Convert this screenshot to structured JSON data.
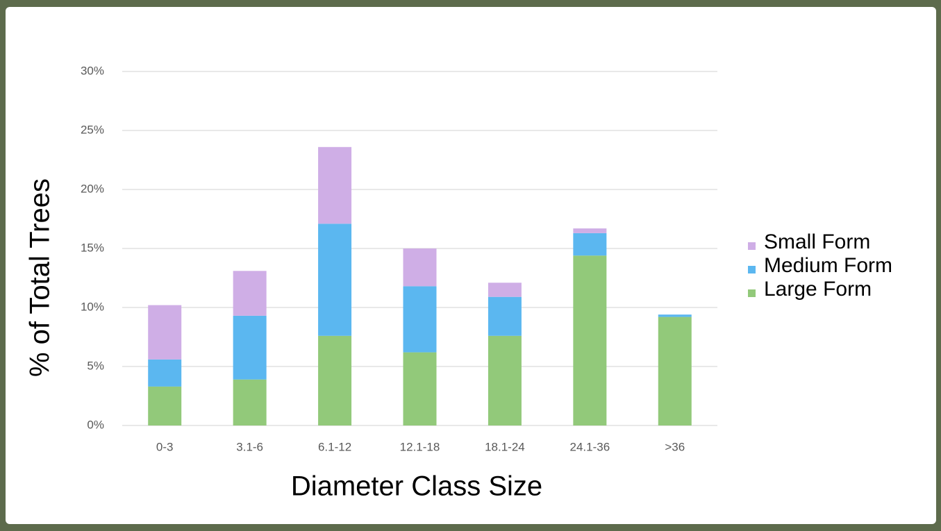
{
  "chart_data": {
    "type": "stacked-bar",
    "x_label": "Diameter Class Size",
    "y_label": "% of Total Trees",
    "categories": [
      "0-3",
      "3.1-6",
      "6.1-12",
      "12.1-18",
      "18.1-24",
      "24.1-36",
      ">36"
    ],
    "series": [
      {
        "name": "Large Form",
        "color": "#92c97a",
        "values": [
          3.3,
          3.9,
          7.6,
          6.2,
          7.6,
          14.4,
          9.2
        ]
      },
      {
        "name": "Medium Form",
        "color": "#5bb7f0",
        "values": [
          2.3,
          5.4,
          9.5,
          5.6,
          3.3,
          1.9,
          0.2
        ]
      },
      {
        "name": "Small Form",
        "color": "#cfaee6",
        "values": [
          4.6,
          3.8,
          6.5,
          3.2,
          1.2,
          0.4,
          0
        ]
      }
    ],
    "ylim": [
      0,
      30
    ],
    "yticks": [
      {
        "value": 0,
        "label": "0%"
      },
      {
        "value": 5,
        "label": "5%"
      },
      {
        "value": 10,
        "label": "10%"
      },
      {
        "value": 15,
        "label": "15%"
      },
      {
        "value": 20,
        "label": "20%"
      },
      {
        "value": 25,
        "label": "25%"
      },
      {
        "value": 30,
        "label": "30%"
      }
    ],
    "grid": true,
    "legend_position": "right"
  }
}
